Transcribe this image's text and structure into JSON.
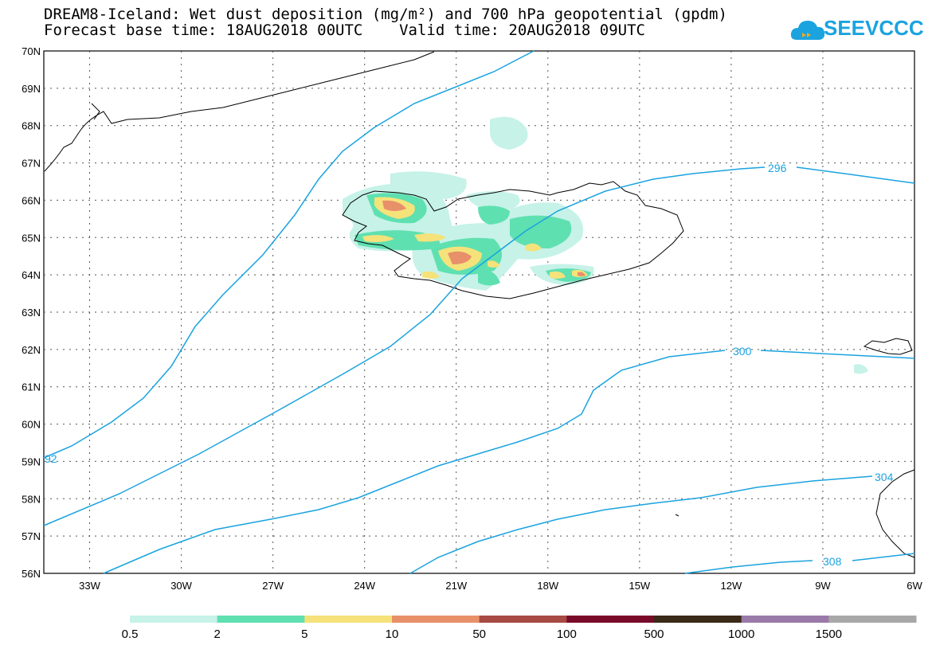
{
  "title": {
    "line1": "DREAM8-Iceland: Wet dust deposition (mg/m²) and 700 hPa geopotential (gpdm)",
    "line2": "Forecast base time: 18AUG2018 00UTC    Valid time: 20AUG2018 09UTC"
  },
  "logo": {
    "text": "SEEVCCC",
    "icon": "cloud-icon"
  },
  "map": {
    "lon_range": [
      -34.5,
      -6
    ],
    "lat_range": [
      56,
      70
    ],
    "lon_ticks": [
      "33W",
      "30W",
      "27W",
      "24W",
      "21W",
      "18W",
      "15W",
      "12W",
      "9W",
      "6W"
    ],
    "lat_ticks": [
      "56N",
      "57N",
      "58N",
      "59N",
      "60N",
      "61N",
      "62N",
      "63N",
      "64N",
      "65N",
      "66N",
      "67N",
      "68N",
      "69N",
      "70N"
    ],
    "gridlines": "dotted",
    "contour_color": "#1aa3df",
    "contour_labels": [
      "92",
      "296",
      "300",
      "304",
      "308"
    ]
  },
  "colorbar": {
    "labels": [
      "0.5",
      "2",
      "5",
      "10",
      "50",
      "100",
      "500",
      "1000",
      "1500"
    ],
    "colors": [
      "#c6f2e8",
      "#5fe0b0",
      "#f5e27a",
      "#e8906a",
      "#a84a44",
      "#7a0a2a",
      "#3a2a18",
      "#9a7aa8",
      "#a8a8a8"
    ]
  }
}
